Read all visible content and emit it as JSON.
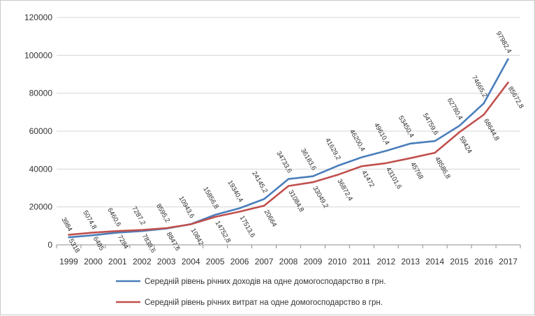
{
  "chart_data": {
    "type": "line",
    "x": [
      "1999",
      "2000",
      "2001",
      "2002",
      "2003",
      "2004",
      "2005",
      "2006",
      "2007",
      "2008",
      "2009",
      "2010",
      "2011",
      "2012",
      "2013",
      "2014",
      "2015",
      "2016",
      "2017"
    ],
    "ylim": [
      0,
      120000
    ],
    "yticks": [
      "0",
      "20000",
      "40000",
      "60000",
      "80000",
      "100000",
      "120000"
    ],
    "grid": true,
    "legend_position": "bottom",
    "series": [
      {
        "name": "Середній рівень річних доходів на одне домогосподарство в грн.",
        "color": "#4a7ebb",
        "values": [
          3984,
          5074.8,
          6460.6,
          7287.2,
          8595.2,
          10943.6,
          15856.8,
          19340.4,
          24145.2,
          34733.6,
          36183.6,
          41629.2,
          46200.4,
          49610.4,
          53450.4,
          54759.6,
          62780.4,
          74665.2,
          97982.4
        ],
        "labels": [
          "3984",
          "5074,8",
          "6460,6",
          "7287,2",
          "8595,2",
          "10943,6",
          "15856,8",
          "19340,4",
          "24145,2",
          "34733,6",
          "36183,6",
          "41629,2",
          "46200,4",
          "49610,4",
          "53450,4",
          "54759,6",
          "62780,4",
          "74665,2",
          "97982,4"
        ]
      },
      {
        "name": "Середній рівень річних витрат на одне домогосподарство в грн.",
        "color": "#c0504d",
        "values": [
          5318,
          6485,
          7284,
          7839.6,
          8847.6,
          10842,
          14752.8,
          17513.6,
          20664,
          31084.8,
          33049.2,
          36872.4,
          41472,
          43101.6,
          45768,
          48586.8,
          59424,
          68644.8,
          85672.8
        ],
        "labels": [
          "5318",
          "6485",
          "7284",
          "7839,6",
          "8847,6",
          "10842",
          "14752,8",
          "17513,6",
          "20664",
          "31084,8",
          "33049,2",
          "36872,4",
          "41472",
          "43101,6",
          "45768",
          "48586,8",
          "59424",
          "68644,8",
          "85672,8"
        ]
      }
    ]
  }
}
